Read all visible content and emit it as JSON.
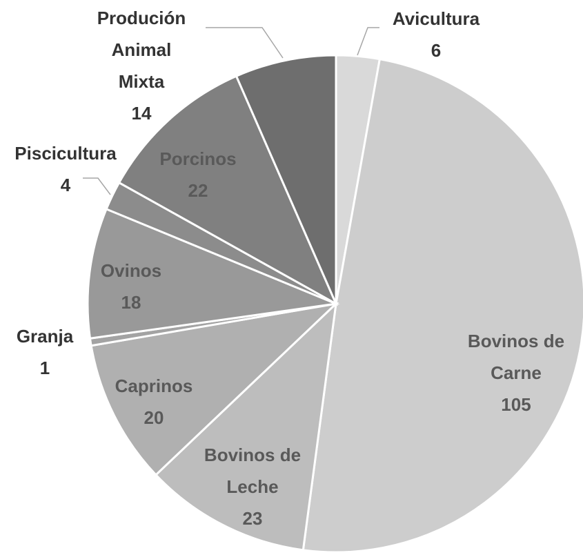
{
  "chart_data": {
    "type": "pie",
    "categories": [
      "Avicultura",
      "Bovinos de Carne",
      "Bovinos de Leche",
      "Caprinos",
      "Granja",
      "Ovinos",
      "Piscicultura",
      "Porcinos",
      "Produción Animal Mixta"
    ],
    "values": [
      6,
      105,
      23,
      20,
      1,
      18,
      4,
      22,
      14
    ],
    "colors": [
      "#d9d9d9",
      "#cdcdcd",
      "#bdbdbd",
      "#b0b0b0",
      "#a3a3a3",
      "#999999",
      "#8c8c8c",
      "#808080",
      "#6e6e6e"
    ]
  }
}
